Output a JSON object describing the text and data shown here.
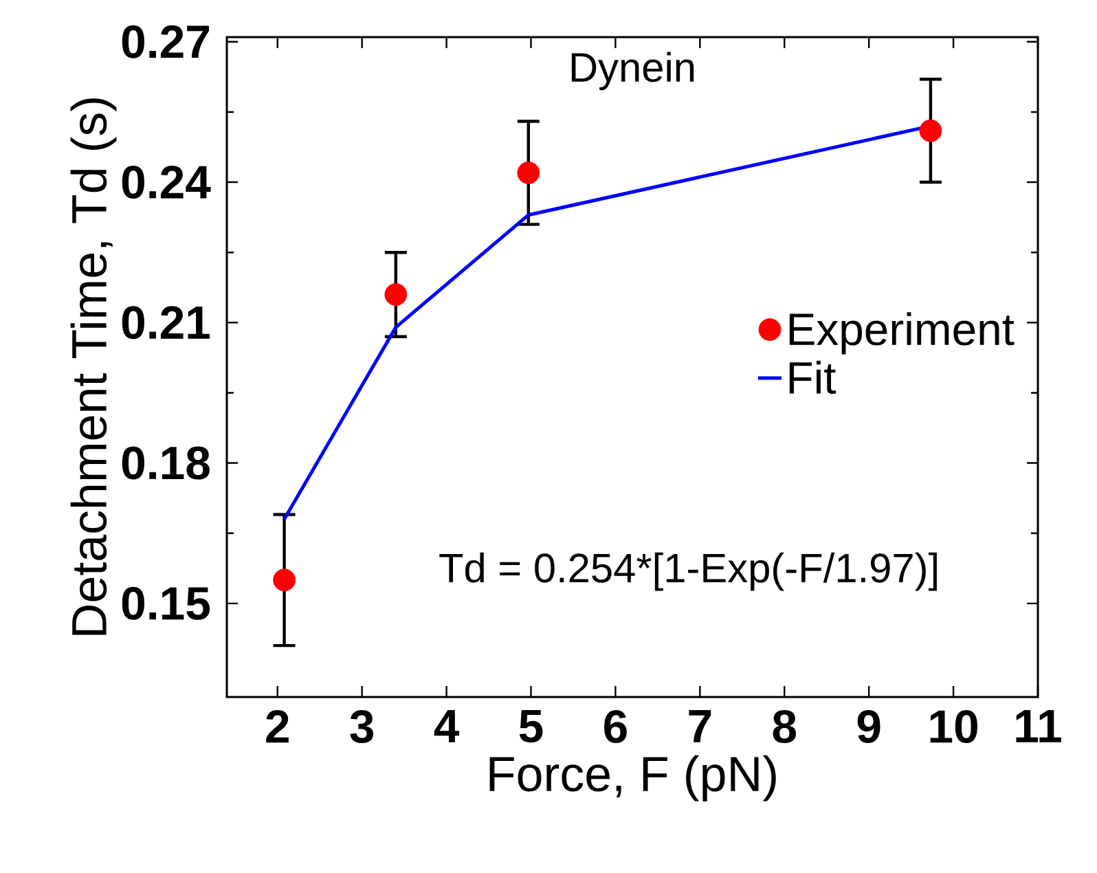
{
  "chart_data": {
    "type": "scatter",
    "title": "Dynein",
    "xlabel": "Force, F (pN)",
    "ylabel": "Detachment Time, Td (s)",
    "xlim": [
      1.4,
      11
    ],
    "ylim": [
      0.13,
      0.271
    ],
    "xticks": [
      2,
      3,
      4,
      5,
      6,
      7,
      8,
      9,
      10,
      11
    ],
    "yticks": [
      0.15,
      0.18,
      0.21,
      0.24,
      0.27
    ],
    "series": [
      {
        "name": "Experiment",
        "marker": "circle",
        "color": "#ff0000",
        "x": [
          2.08,
          3.4,
          4.97,
          9.73
        ],
        "values": [
          0.155,
          0.216,
          0.242,
          0.251
        ],
        "errors": [
          0.014,
          0.009,
          0.011,
          0.011
        ]
      },
      {
        "name": "Fit",
        "type": "line",
        "marker": "none",
        "line_style": "solid",
        "color": "#0000ff",
        "x": [
          2.08,
          3.4,
          4.97,
          9.73
        ],
        "values": [
          0.168,
          0.209,
          0.233,
          0.252
        ]
      }
    ],
    "legend": "right",
    "grid": false,
    "annotations": [
      "Td = 0.254*[1-Exp(-F/1.97)]"
    ]
  }
}
